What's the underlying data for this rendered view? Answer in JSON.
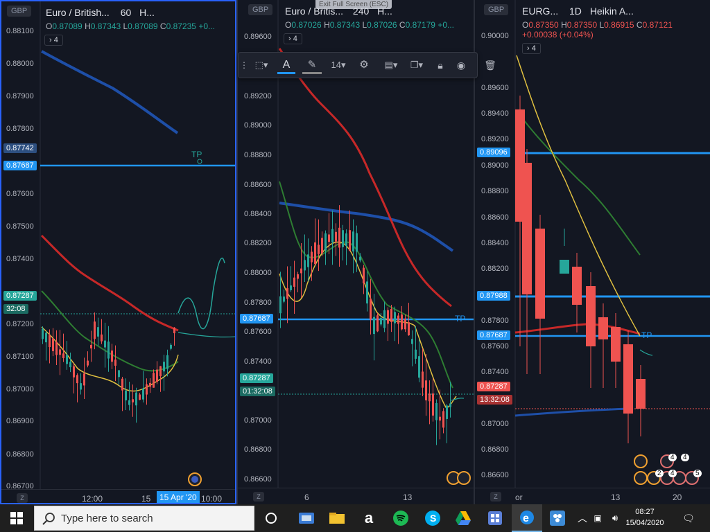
{
  "app": {
    "exit_fullscreen": "Exit Full Screen (ESC)"
  },
  "colors": {
    "up": "#26a69a",
    "down": "#ef5350",
    "ma_blue": "#1e4fa8",
    "ma_red": "#c62828",
    "ma_green": "#2e7d32",
    "ma_yellow": "#e0c040",
    "hline": "#2196f3"
  },
  "toolbar": {
    "font_size": "14",
    "items": [
      "drag-handle",
      "rectangle-select",
      "text-color",
      "pencil-color",
      "font-size",
      "settings",
      "template",
      "clone",
      "lock",
      "visibility",
      "delete"
    ]
  },
  "panes": [
    {
      "currency": "GBP",
      "symbol": "Euro / British...",
      "interval": "60",
      "chart_style": "H...",
      "ohlc": {
        "o": "0.87089",
        "h": "0.87343",
        "l": "0.87089",
        "c": "0.87235",
        "change": "+0..."
      },
      "indicator_count": "4",
      "y_labels": [
        "0.88100",
        "0.88000",
        "0.87900",
        "0.87800",
        "0.87742",
        "0.87687",
        "0.87600",
        "0.87500",
        "0.87400",
        "0.87287",
        "0.87200",
        "0.87100",
        "0.87000",
        "0.86900",
        "0.86800",
        "0.86700"
      ],
      "badges": {
        "price_1": "0.87742",
        "price_2": "0.87687",
        "last_price": "0.87287",
        "countdown": "32:08"
      },
      "x_labels": [
        "12:00",
        "15"
      ],
      "x_highlight": "15 Apr '20",
      "x_highlight_time": "10:00",
      "tp_label": "TP",
      "axis_z": "Z"
    },
    {
      "currency": "GBP",
      "symbol": "Euro / Britis...",
      "interval": "240",
      "chart_style": "H...",
      "ohlc": {
        "o": "0.87026",
        "h": "0.87343",
        "l": "0.87026",
        "c": "0.87179",
        "change": "+0..."
      },
      "indicator_count": "4",
      "y_labels": [
        "0.89600",
        "0.89200",
        "0.89000",
        "0.88800",
        "0.88600",
        "0.88400",
        "0.88200",
        "0.88000",
        "0.87800",
        "0.87687",
        "0.87600",
        "0.87400",
        "0.87287",
        "0.87000",
        "0.86800",
        "0.86600"
      ],
      "badges": {
        "hline_price": "0.87687",
        "last_price": "0.87287",
        "countdown": "01:32:08"
      },
      "x_labels": [
        "6",
        "13"
      ],
      "tp_label": "TP",
      "axis_z": "Z"
    },
    {
      "currency": "GBP",
      "symbol": "EURG...",
      "interval": "1D",
      "chart_style": "Heikin A...",
      "ohlc": {
        "o": "0.87350",
        "h": "0.87350",
        "l": "0.86915",
        "c": "0.87121",
        "change": "+0.00038 (+0.04%)"
      },
      "indicator_count": "4",
      "y_labels": [
        "0.90000",
        "0.89600",
        "0.89400",
        "0.89200",
        "0.89096",
        "0.89000",
        "0.88800",
        "0.88600",
        "0.88400",
        "0.88200",
        "0.87988",
        "0.87800",
        "0.87687",
        "0.87600",
        "0.87400",
        "0.87287",
        "0.87000",
        "0.86800",
        "0.86600"
      ],
      "badges": {
        "line_1": "0.89096",
        "line_2": "0.87988",
        "line_3": "0.87687",
        "last_price": "0.87287",
        "countdown": "13:32:08"
      },
      "x_labels": [
        "or",
        "13",
        "20"
      ],
      "tp_label": "TP",
      "event_counts": [
        "4",
        "4",
        "2",
        "4",
        "5"
      ],
      "axis_z": "Z"
    }
  ],
  "taskbar": {
    "search_placeholder": "Type here to search",
    "time": "08:27",
    "date": "15/04/2020",
    "apps": [
      "task-view",
      "photos",
      "file-explorer",
      "amazon",
      "spotify",
      "skype",
      "google-drive",
      "app-grid",
      "edge",
      "network-app"
    ]
  }
}
